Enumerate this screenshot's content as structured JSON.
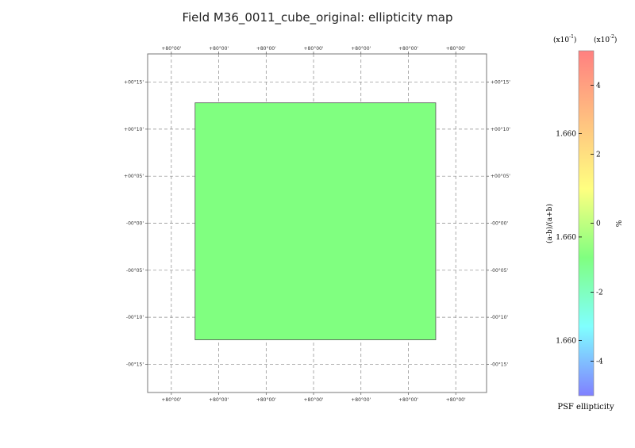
{
  "chart_data": {
    "type": "heatmap",
    "title": "Field M36_0011_cube_original: ellipticity map",
    "x_tick_labels": [
      "+80°00'",
      "+80°00'",
      "+80°00'",
      "+80°00'",
      "+80°00'",
      "+80°00'",
      "+80°00'"
    ],
    "y_tick_labels": [
      "+00°15'",
      "+00°10'",
      "+00°05'",
      "-00°00'",
      "-00°05'",
      "-00°10'",
      "-00°15'"
    ],
    "y_tick_values": [
      15,
      10,
      5,
      0,
      -5,
      -10,
      -15
    ],
    "ylim": [
      -18,
      18
    ],
    "grid": true,
    "field": {
      "dec_min": -12.4,
      "dec_max": 12.8,
      "ra_min_fraction": 0.14,
      "ra_max_fraction": 0.85,
      "value_percent": 0,
      "color": "#80ff80"
    },
    "colorbar": {
      "title": "PSF ellipticity",
      "left_label": "(a-b)/(a+b)",
      "right_label": "%",
      "left_multiplier": "(x10",
      "left_exponent": "-1",
      "right_multiplier": "(x10",
      "right_exponent": "-2",
      "range_percent": [
        -5,
        5
      ],
      "left_ticks": [
        {
          "label": "1.660",
          "value": 2.6
        },
        {
          "label": "1.660",
          "value": -0.4
        },
        {
          "label": "1.660",
          "value": -3.4
        }
      ],
      "right_ticks": [
        {
          "label": "4",
          "value": 4
        },
        {
          "label": "2",
          "value": 2
        },
        {
          "label": "0",
          "value": 0
        },
        {
          "label": "-2",
          "value": -2
        },
        {
          "label": "-4",
          "value": -4
        }
      ],
      "colors": [
        "#ff8080",
        "#ffc080",
        "#ffff80",
        "#80ff80",
        "#80ffff",
        "#8080ff"
      ]
    }
  }
}
